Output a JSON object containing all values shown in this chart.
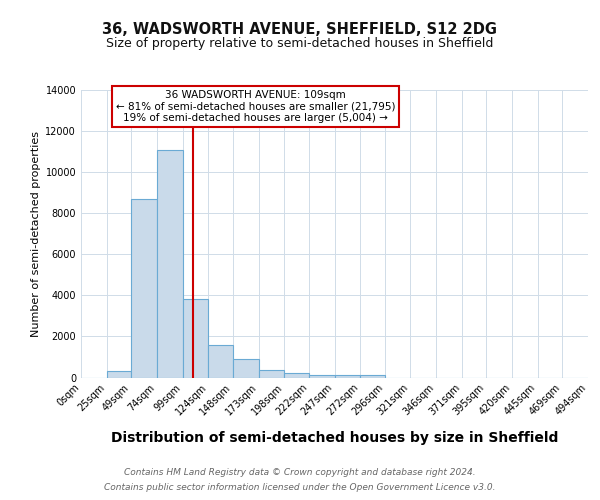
{
  "title": "36, WADSWORTH AVENUE, SHEFFIELD, S12 2DG",
  "subtitle": "Size of property relative to semi-detached houses in Sheffield",
  "xlabel": "Distribution of semi-detached houses by size in Sheffield",
  "ylabel": "Number of semi-detached properties",
  "bar_edges": [
    0,
    25,
    49,
    74,
    99,
    124,
    148,
    173,
    198,
    222,
    247,
    272,
    296,
    321,
    346,
    371,
    395,
    420,
    445,
    469,
    494
  ],
  "bar_heights": [
    0,
    300,
    8700,
    11100,
    3800,
    1600,
    900,
    350,
    200,
    100,
    100,
    100,
    0,
    0,
    0,
    0,
    0,
    0,
    0,
    0
  ],
  "bar_color": "#c9daea",
  "bar_edge_color": "#6aaad4",
  "bar_linewidth": 0.8,
  "property_size": 109,
  "redline_color": "#cc0000",
  "annotation_title": "36 WADSWORTH AVENUE: 109sqm",
  "annotation_line1": "← 81% of semi-detached houses are smaller (21,795)",
  "annotation_line2": "19% of semi-detached houses are larger (5,004) →",
  "annotation_box_color": "#cc0000",
  "ylim": [
    0,
    14000
  ],
  "yticks": [
    0,
    2000,
    4000,
    6000,
    8000,
    10000,
    12000,
    14000
  ],
  "xtick_labels": [
    "0sqm",
    "25sqm",
    "49sqm",
    "74sqm",
    "99sqm",
    "124sqm",
    "148sqm",
    "173sqm",
    "198sqm",
    "222sqm",
    "247sqm",
    "272sqm",
    "296sqm",
    "321sqm",
    "346sqm",
    "371sqm",
    "395sqm",
    "420sqm",
    "445sqm",
    "469sqm",
    "494sqm"
  ],
  "footer_line1": "Contains HM Land Registry data © Crown copyright and database right 2024.",
  "footer_line2": "Contains public sector information licensed under the Open Government Licence v3.0.",
  "bg_color": "#ffffff",
  "grid_color": "#d0dce8",
  "title_fontsize": 10.5,
  "subtitle_fontsize": 9,
  "xlabel_fontsize": 10,
  "ylabel_fontsize": 8,
  "tick_fontsize": 7,
  "annotation_fontsize": 7.5,
  "footer_fontsize": 6.5
}
